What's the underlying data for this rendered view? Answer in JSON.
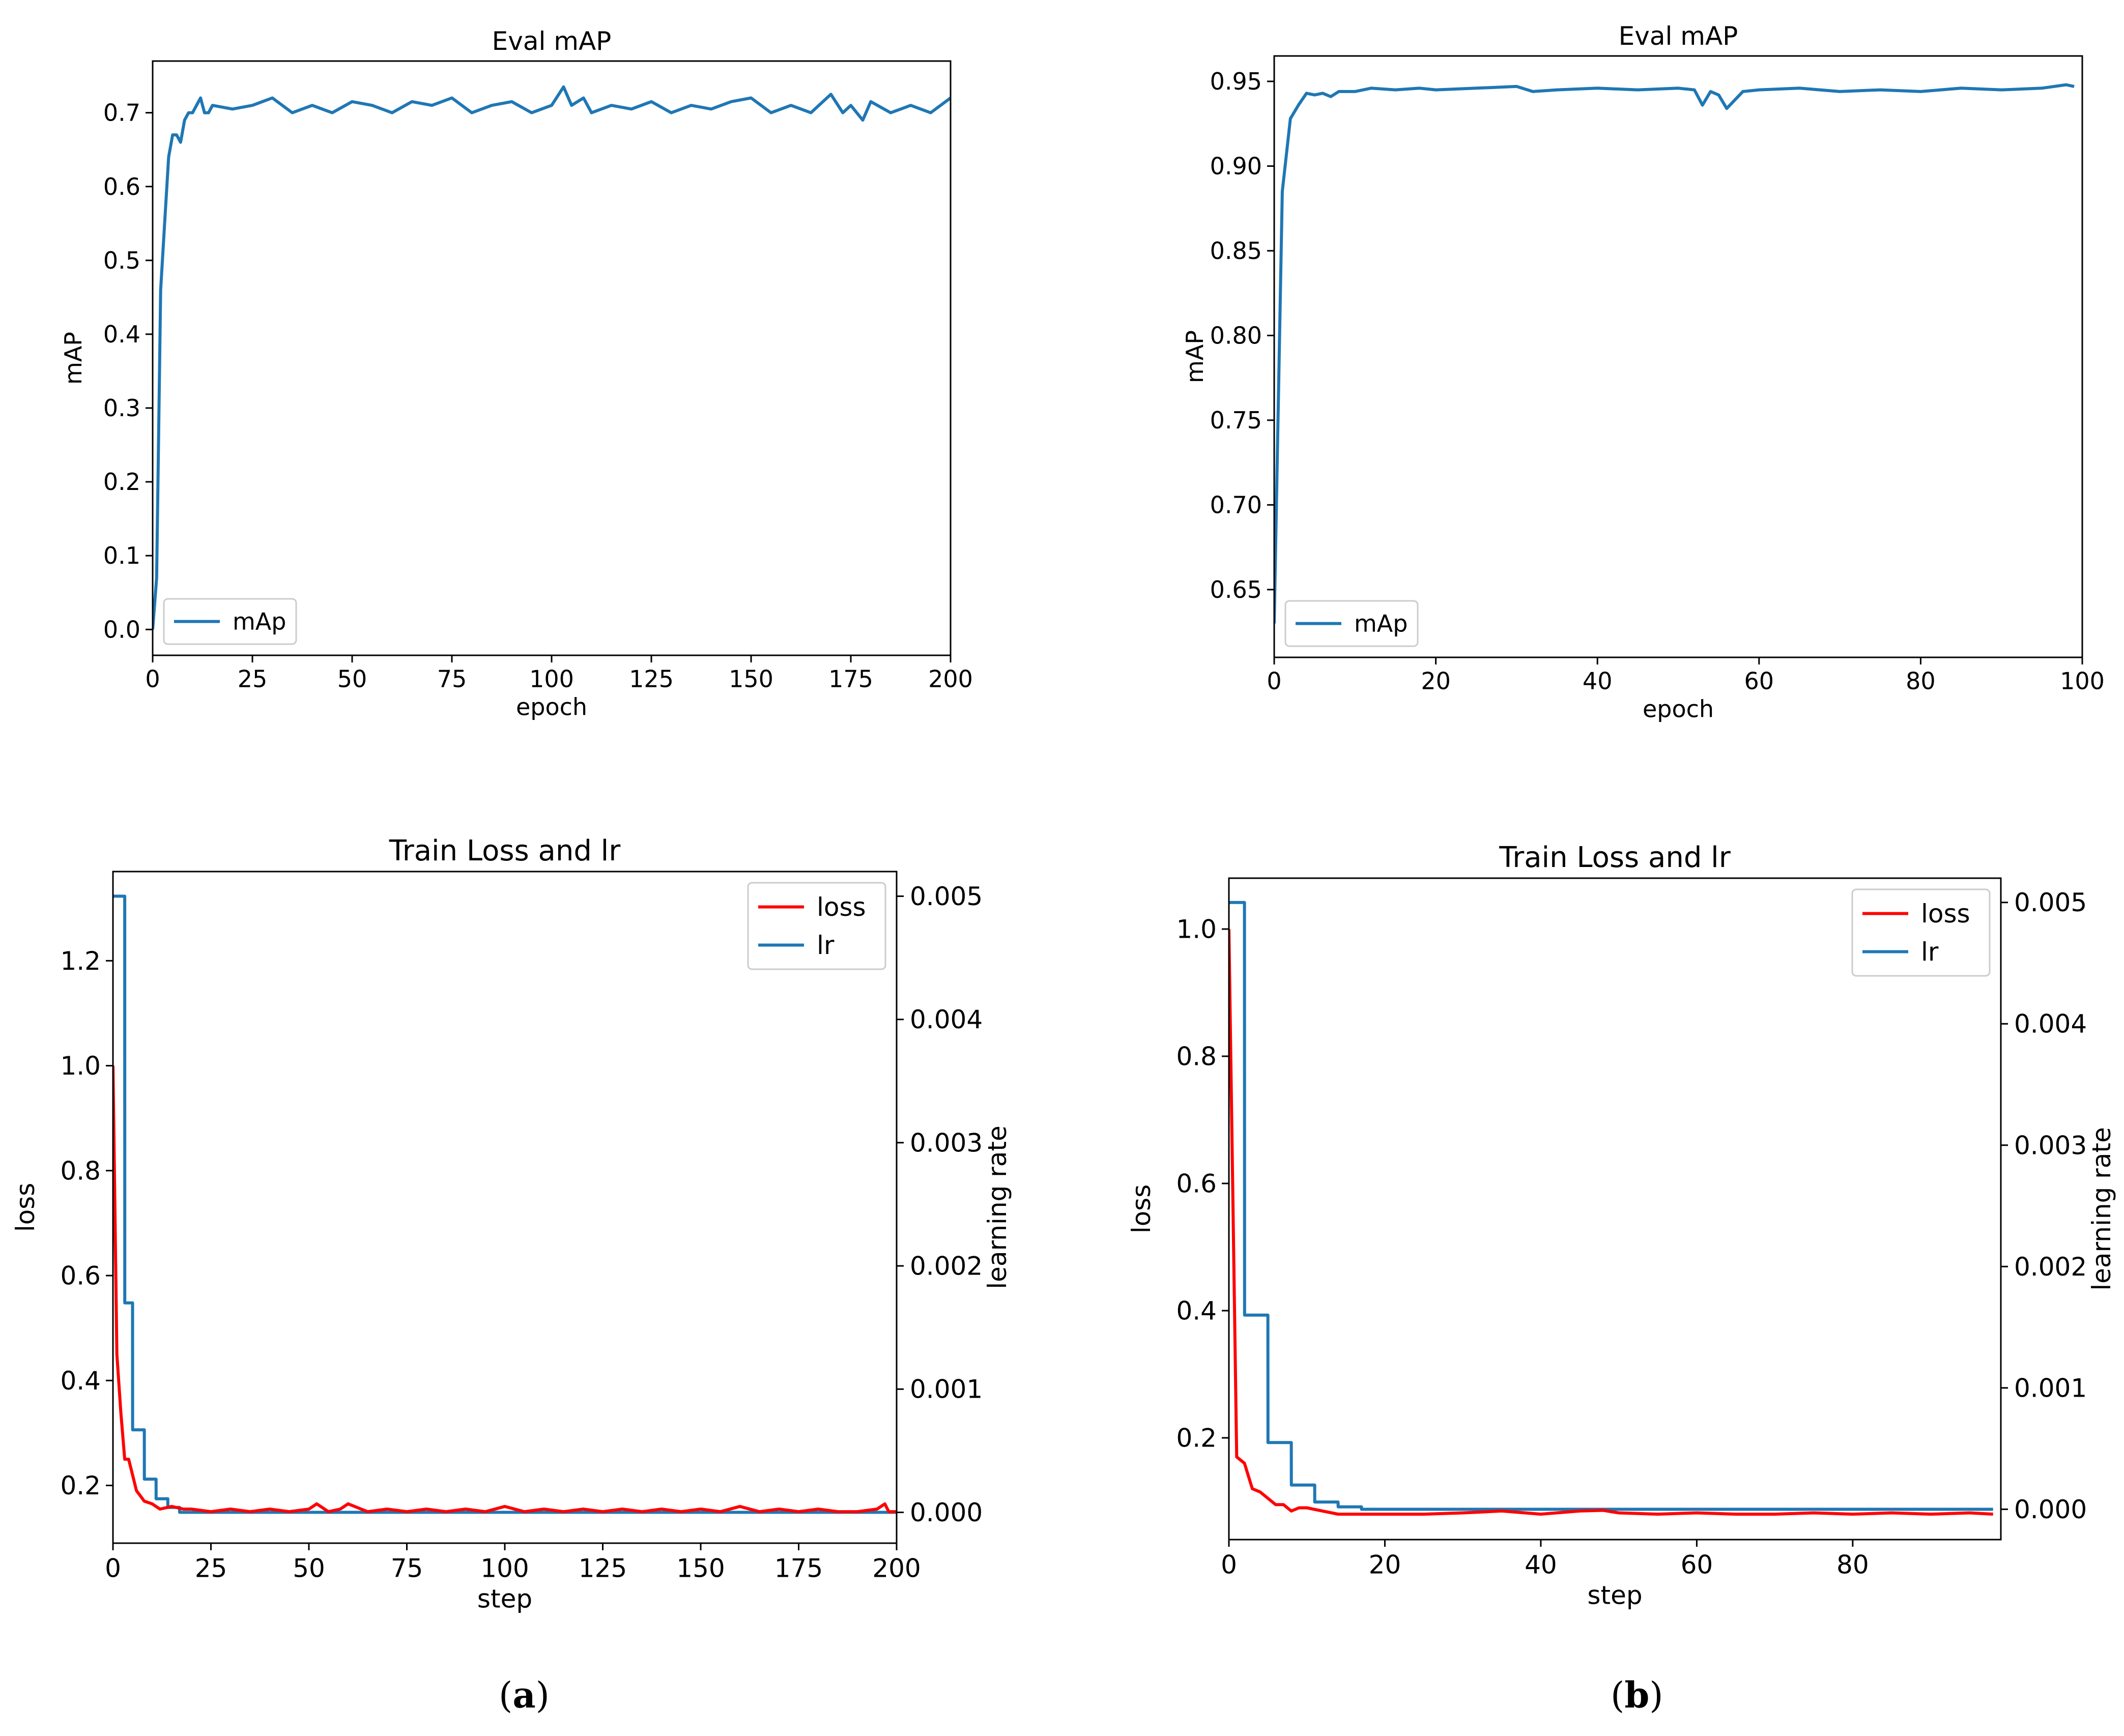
{
  "figure": {
    "caption_a": "a",
    "caption_b": "b"
  },
  "colors": {
    "map": "#1f77b4",
    "lr": "#1f77b4",
    "loss": "#ff0000"
  },
  "chart_data": [
    {
      "id": "a-map",
      "type": "line",
      "title": "Eval mAP",
      "xlabel": "epoch",
      "ylabel": "mAP",
      "xlim": [
        0,
        200
      ],
      "ylim": [
        -0.035,
        0.77
      ],
      "xticks": [
        0,
        25,
        50,
        75,
        100,
        125,
        150,
        175,
        200
      ],
      "xtick_labels": [
        "0",
        "25",
        "50",
        "75",
        "100",
        "125",
        "150",
        "175",
        "200"
      ],
      "yticks": [
        0.0,
        0.1,
        0.2,
        0.3,
        0.4,
        0.5,
        0.6,
        0.7
      ],
      "ytick_labels": [
        "0.0",
        "0.1",
        "0.2",
        "0.3",
        "0.4",
        "0.5",
        "0.6",
        "0.7"
      ],
      "legend": {
        "position": "lower-left",
        "entries": [
          "mAp"
        ]
      },
      "series": [
        {
          "name": "mAp",
          "x": [
            0,
            1,
            2,
            3,
            4,
            5,
            6,
            7,
            8,
            9,
            10,
            11,
            12,
            13,
            14,
            15,
            20,
            25,
            30,
            35,
            40,
            45,
            50,
            55,
            60,
            65,
            70,
            75,
            80,
            85,
            90,
            95,
            100,
            103,
            105,
            108,
            110,
            115,
            120,
            125,
            130,
            135,
            140,
            145,
            150,
            155,
            160,
            165,
            170,
            173,
            175,
            178,
            180,
            185,
            190,
            195,
            200
          ],
          "y": [
            0.0,
            0.07,
            0.46,
            0.55,
            0.64,
            0.67,
            0.67,
            0.66,
            0.69,
            0.7,
            0.7,
            0.71,
            0.72,
            0.7,
            0.7,
            0.71,
            0.705,
            0.71,
            0.72,
            0.7,
            0.71,
            0.7,
            0.715,
            0.71,
            0.7,
            0.715,
            0.71,
            0.72,
            0.7,
            0.71,
            0.715,
            0.7,
            0.71,
            0.735,
            0.71,
            0.72,
            0.7,
            0.71,
            0.705,
            0.715,
            0.7,
            0.71,
            0.705,
            0.715,
            0.72,
            0.7,
            0.71,
            0.7,
            0.725,
            0.7,
            0.71,
            0.69,
            0.715,
            0.7,
            0.71,
            0.7,
            0.72
          ]
        }
      ]
    },
    {
      "id": "b-map",
      "type": "line",
      "title": "Eval mAP",
      "xlabel": "epoch",
      "ylabel": "mAP",
      "xlim": [
        0,
        100
      ],
      "ylim": [
        0.61,
        0.965
      ],
      "xticks": [
        0,
        20,
        40,
        60,
        80,
        100
      ],
      "xtick_labels": [
        "0",
        "20",
        "40",
        "60",
        "80",
        "100"
      ],
      "yticks": [
        0.65,
        0.7,
        0.75,
        0.8,
        0.85,
        0.9,
        0.95
      ],
      "ytick_labels": [
        "0.65",
        "0.70",
        "0.75",
        "0.80",
        "0.85",
        "0.90",
        "0.95"
      ],
      "legend": {
        "position": "lower-left",
        "entries": [
          "mAp"
        ]
      },
      "series": [
        {
          "name": "mAp",
          "x": [
            0,
            1,
            2,
            3,
            4,
            5,
            6,
            7,
            8,
            10,
            12,
            15,
            18,
            20,
            25,
            30,
            32,
            35,
            40,
            45,
            50,
            52,
            53,
            54,
            55,
            56,
            58,
            60,
            65,
            70,
            75,
            80,
            85,
            90,
            95,
            98,
            99
          ],
          "y": [
            0.63,
            0.885,
            0.928,
            0.936,
            0.943,
            0.942,
            0.943,
            0.941,
            0.944,
            0.944,
            0.946,
            0.945,
            0.946,
            0.945,
            0.946,
            0.947,
            0.944,
            0.945,
            0.946,
            0.945,
            0.946,
            0.945,
            0.936,
            0.944,
            0.942,
            0.934,
            0.944,
            0.945,
            0.946,
            0.944,
            0.945,
            0.944,
            0.946,
            0.945,
            0.946,
            0.948,
            0.947
          ]
        }
      ]
    },
    {
      "id": "a-loss",
      "type": "line",
      "title": "Train Loss and lr",
      "xlabel": "step",
      "ylabel": "loss",
      "y2label": "learning rate",
      "xlim": [
        0,
        200
      ],
      "ylim": [
        0.09,
        1.37
      ],
      "y2lim": [
        -0.00025,
        0.0052
      ],
      "xticks": [
        0,
        25,
        50,
        75,
        100,
        125,
        150,
        175,
        200
      ],
      "xtick_labels": [
        "0",
        "25",
        "50",
        "75",
        "100",
        "125",
        "150",
        "175",
        "200"
      ],
      "yticks": [
        0.2,
        0.4,
        0.6,
        0.8,
        1.0,
        1.2
      ],
      "ytick_labels": [
        "0.2",
        "0.4",
        "0.6",
        "0.8",
        "1.0",
        "1.2"
      ],
      "y2ticks": [
        0.0,
        0.001,
        0.002,
        0.003,
        0.004,
        0.005
      ],
      "y2tick_labels": [
        "0.000",
        "0.001",
        "0.002",
        "0.003",
        "0.004",
        "0.005"
      ],
      "legend": {
        "position": "top-right",
        "entries": [
          "loss",
          "lr"
        ]
      },
      "series": [
        {
          "name": "loss",
          "axis": "left",
          "x": [
            0,
            1,
            2,
            3,
            4,
            5,
            6,
            7,
            8,
            10,
            12,
            15,
            18,
            20,
            25,
            30,
            35,
            40,
            45,
            50,
            52,
            55,
            58,
            60,
            65,
            70,
            75,
            80,
            85,
            90,
            95,
            100,
            105,
            110,
            115,
            120,
            125,
            130,
            135,
            140,
            145,
            150,
            155,
            160,
            165,
            170,
            175,
            180,
            185,
            190,
            195,
            197,
            198,
            200
          ],
          "y": [
            1.0,
            0.45,
            0.34,
            0.25,
            0.25,
            0.22,
            0.19,
            0.18,
            0.17,
            0.165,
            0.155,
            0.16,
            0.155,
            0.155,
            0.15,
            0.155,
            0.15,
            0.155,
            0.15,
            0.155,
            0.165,
            0.15,
            0.155,
            0.165,
            0.15,
            0.155,
            0.15,
            0.155,
            0.15,
            0.155,
            0.15,
            0.16,
            0.15,
            0.155,
            0.15,
            0.155,
            0.15,
            0.155,
            0.15,
            0.155,
            0.15,
            0.155,
            0.15,
            0.16,
            0.15,
            0.155,
            0.15,
            0.155,
            0.15,
            0.15,
            0.155,
            0.165,
            0.15,
            0.15
          ]
        },
        {
          "name": "lr",
          "axis": "right",
          "x": [
            0,
            1,
            2,
            3,
            3.01,
            5,
            5.01,
            8,
            8.01,
            11,
            11.01,
            14,
            14.01,
            17,
            17.01,
            200
          ],
          "y": [
            0.005,
            0.005,
            0.005,
            0.005,
            0.0017,
            0.0017,
            0.00067,
            0.00067,
            0.00027,
            0.00027,
            0.00011,
            0.00011,
            4e-05,
            4e-05,
            0.0,
            0.0
          ]
        }
      ]
    },
    {
      "id": "b-loss",
      "type": "line",
      "title": "Train Loss and lr",
      "xlabel": "step",
      "ylabel": "loss",
      "y2label": "learning rate",
      "xlim": [
        0,
        99
      ],
      "ylim": [
        0.04,
        1.08
      ],
      "y2lim": [
        -0.00025,
        0.0052
      ],
      "xticks": [
        0,
        20,
        40,
        60,
        80
      ],
      "xtick_labels": [
        "0",
        "20",
        "40",
        "60",
        "80"
      ],
      "yticks": [
        0.2,
        0.4,
        0.6,
        0.8,
        1.0
      ],
      "ytick_labels": [
        "0.2",
        "0.4",
        "0.6",
        "0.8",
        "1.0"
      ],
      "y2ticks": [
        0.0,
        0.001,
        0.002,
        0.003,
        0.004,
        0.005
      ],
      "y2tick_labels": [
        "0.000",
        "0.001",
        "0.002",
        "0.003",
        "0.004",
        "0.005"
      ],
      "legend": {
        "position": "top-right",
        "entries": [
          "loss",
          "lr"
        ]
      },
      "series": [
        {
          "name": "loss",
          "axis": "left",
          "x": [
            0,
            1,
            2,
            3,
            4,
            5,
            6,
            7,
            8,
            9,
            10,
            12,
            14,
            16,
            20,
            25,
            30,
            35,
            40,
            45,
            48,
            50,
            55,
            60,
            65,
            70,
            75,
            80,
            85,
            90,
            95,
            98
          ],
          "y": [
            1.0,
            0.17,
            0.16,
            0.12,
            0.115,
            0.105,
            0.095,
            0.095,
            0.085,
            0.09,
            0.09,
            0.085,
            0.08,
            0.08,
            0.08,
            0.08,
            0.082,
            0.085,
            0.08,
            0.085,
            0.086,
            0.082,
            0.08,
            0.082,
            0.08,
            0.08,
            0.082,
            0.08,
            0.082,
            0.08,
            0.082,
            0.08
          ]
        },
        {
          "name": "lr",
          "axis": "right",
          "x": [
            0,
            1,
            2,
            2.01,
            5,
            5.01,
            8,
            8.01,
            11,
            11.01,
            14,
            14.01,
            17,
            17.01,
            98
          ],
          "y": [
            0.005,
            0.005,
            0.005,
            0.0016,
            0.0016,
            0.00055,
            0.00055,
            0.0002,
            0.0002,
            6e-05,
            6e-05,
            2e-05,
            2e-05,
            0.0,
            0.0
          ]
        }
      ]
    }
  ]
}
